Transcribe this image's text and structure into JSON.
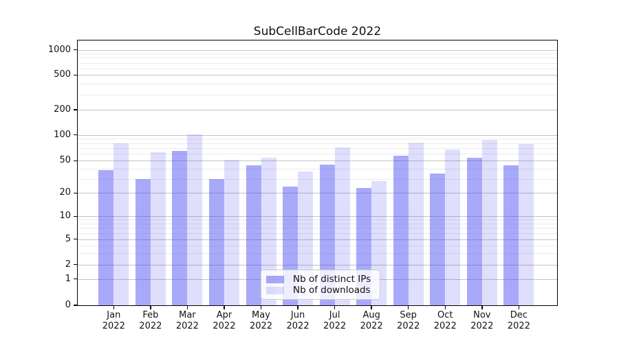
{
  "figure": {
    "title": "SubCellBarCode 2022"
  },
  "chart_data": {
    "type": "bar",
    "title": "SubCellBarCode 2022",
    "x_months": [
      "Jan",
      "Feb",
      "Mar",
      "Apr",
      "May",
      "Jun",
      "Jul",
      "Aug",
      "Sep",
      "Oct",
      "Nov",
      "Dec"
    ],
    "x_year": "2022",
    "series": [
      {
        "name": "Nb of distinct IPs",
        "color": "rgba(64,64,245,0.45)",
        "values": [
          38,
          30,
          65,
          30,
          44,
          24,
          45,
          23,
          57,
          35,
          54,
          44
        ]
      },
      {
        "name": "Nb of downloads",
        "color": "rgba(64,64,245,0.17)",
        "values": [
          79,
          63,
          102,
          51,
          54,
          37,
          72,
          28,
          81,
          68,
          87,
          78
        ]
      }
    ],
    "y_axis": {
      "scale": "symlog",
      "ticks": [
        0,
        1,
        2,
        5,
        10,
        20,
        50,
        100,
        200,
        500,
        1000
      ],
      "top_value": 1280
    },
    "grid": "major+minor",
    "legend_position": "lower center",
    "xlabel": "",
    "ylabel": ""
  }
}
